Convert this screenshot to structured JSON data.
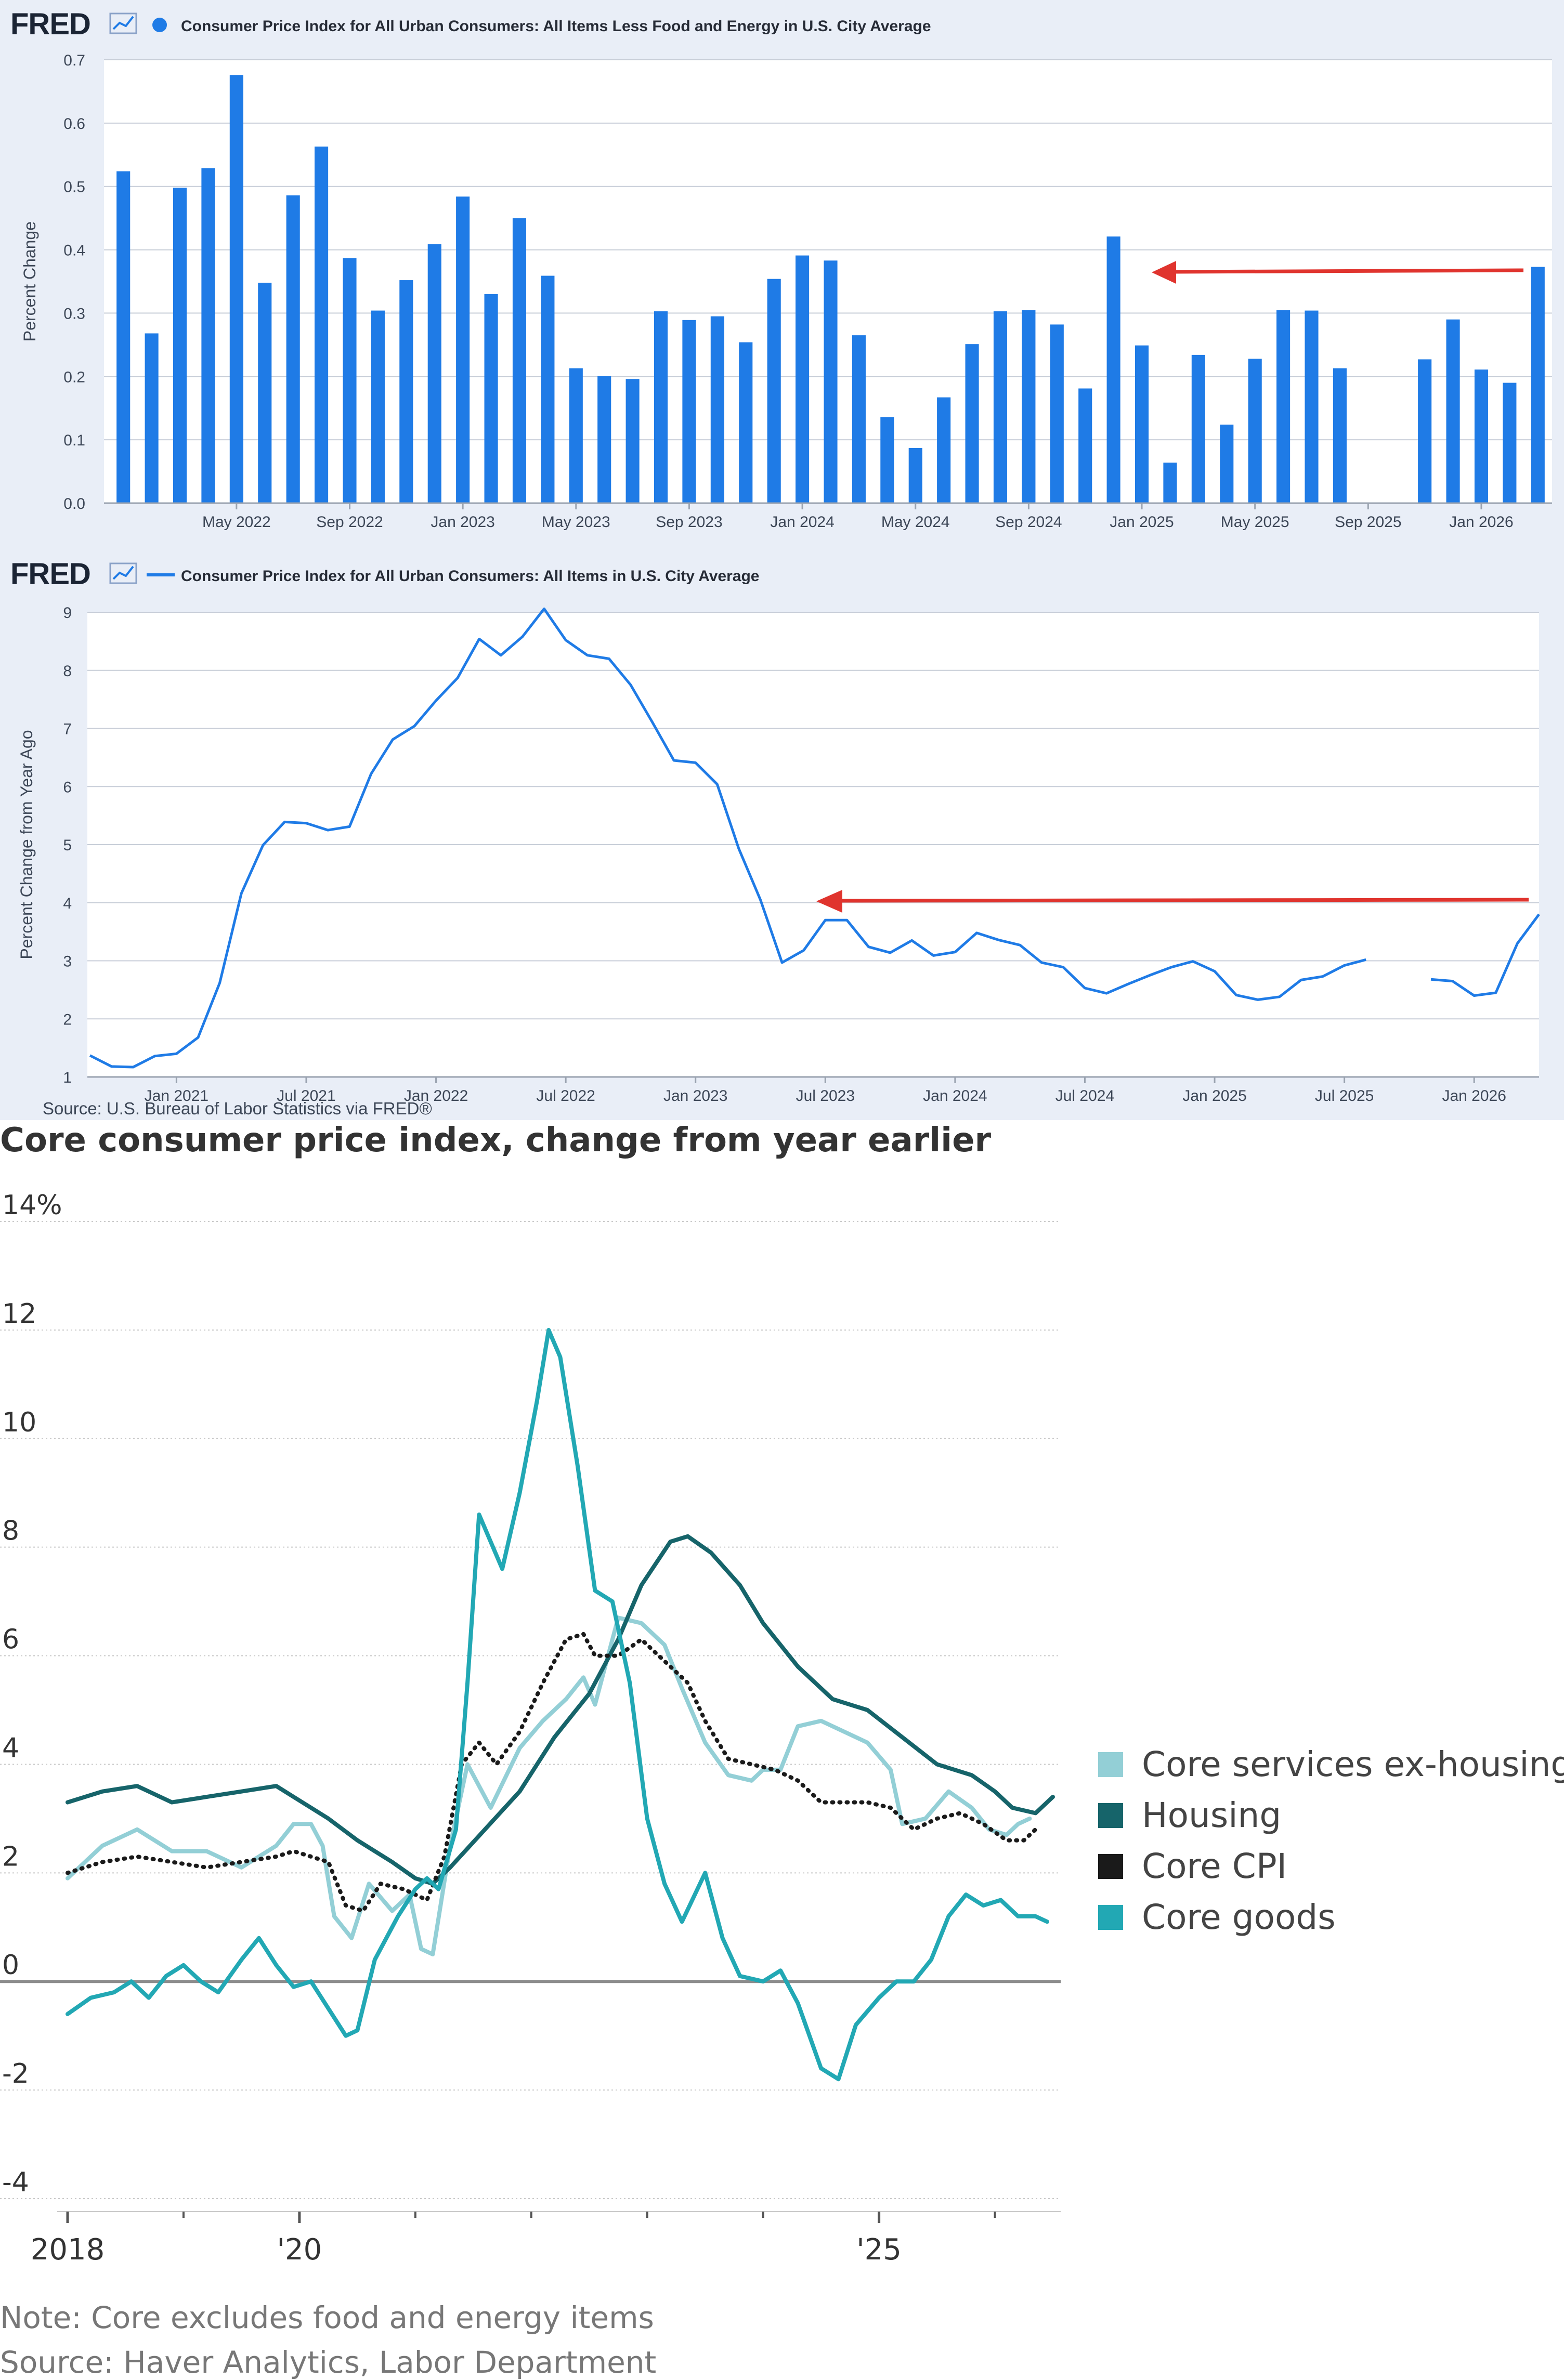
{
  "chart_data": [
    {
      "type": "bar",
      "brand": "FRED",
      "title": "Consumer Price Index for All Urban Consumers: All Items Less Food and Energy in U.S. City Average",
      "ylabel": "Percent Change",
      "ylim": [
        0,
        0.7
      ],
      "yticks": [
        "0.0",
        "0.1",
        "0.2",
        "0.3",
        "0.4",
        "0.5",
        "0.6",
        "0.7"
      ],
      "xtick_labels": [
        "May 2022",
        "Sep 2022",
        "Jan 2023",
        "May 2023",
        "Sep 2023",
        "Jan 2024",
        "May 2024",
        "Sep 2024",
        "Jan 2025",
        "May 2025",
        "Sep 2025",
        "Jan 2026"
      ],
      "categories": [
        "Jan 2022",
        "Feb 2022",
        "Mar 2022",
        "Apr 2022",
        "May 2022",
        "Jun 2022",
        "Jul 2022",
        "Aug 2022",
        "Sep 2022",
        "Oct 2022",
        "Nov 2022",
        "Dec 2022",
        "Jan 2023",
        "Feb 2023",
        "Mar 2023",
        "Apr 2023",
        "May 2023",
        "Jun 2023",
        "Jul 2023",
        "Aug 2023",
        "Sep 2023",
        "Oct 2023",
        "Nov 2023",
        "Dec 2023",
        "Jan 2024",
        "Feb 2024",
        "Mar 2024",
        "Apr 2024",
        "May 2024",
        "Jun 2024",
        "Jul 2024",
        "Aug 2024",
        "Sep 2024",
        "Oct 2024",
        "Nov 2024",
        "Dec 2024",
        "Jan 2025",
        "Feb 2025",
        "Mar 2025",
        "Apr 2025",
        "May 2025",
        "Jun 2025",
        "Jul 2025",
        "Aug 2025",
        "Sep 2025",
        "Oct 2025",
        "Nov 2025",
        "Dec 2025",
        "Jan 2026",
        "Feb 2026",
        "Mar 2026"
      ],
      "values": [
        0.524,
        0.268,
        0.498,
        0.529,
        0.676,
        0.348,
        0.486,
        0.563,
        0.387,
        0.304,
        0.352,
        0.409,
        0.484,
        0.33,
        0.45,
        0.359,
        0.213,
        0.201,
        0.196,
        0.303,
        0.289,
        0.295,
        0.254,
        0.354,
        0.391,
        0.383,
        0.265,
        0.136,
        0.087,
        0.167,
        0.251,
        0.303,
        0.305,
        0.282,
        0.181,
        0.421,
        0.249,
        0.064,
        0.234,
        0.124,
        0.228,
        0.305,
        0.304,
        0.213,
        null,
        null,
        0.227,
        0.29,
        0.211,
        0.19,
        0.373
      ],
      "colors": {
        "bar": "#1f7be6",
        "arrow": "#e0342e",
        "panel": "#e9eef7",
        "grid": "#c8ced8"
      }
    },
    {
      "type": "line",
      "brand": "FRED",
      "title": "Consumer Price Index for All Urban Consumers: All Items in U.S. City Average",
      "ylabel": "Percent Change from Year Ago",
      "ylim": [
        1,
        9
      ],
      "yticks": [
        "1",
        "2",
        "3",
        "4",
        "5",
        "6",
        "7",
        "8",
        "9"
      ],
      "xtick_labels": [
        "Jan 2021",
        "Jul 2021",
        "Jan 2022",
        "Jul 2022",
        "Jan 2023",
        "Jul 2023",
        "Jan 2024",
        "Jul 2024",
        "Jan 2025",
        "Jul 2025",
        "Jan 2026"
      ],
      "source": "Source: U.S. Bureau of Labor Statistics via FRED®",
      "series": [
        {
          "name": "Consumer Price Index for All Urban Consumers: All Items in U.S. City Average",
          "start": "Sep 2020",
          "values": [
            1.37,
            1.18,
            1.17,
            1.36,
            1.4,
            1.68,
            2.62,
            4.16,
            4.99,
            5.39,
            5.37,
            5.25,
            5.31,
            6.22,
            6.81,
            7.04,
            7.48,
            7.87,
            8.54,
            8.26,
            8.58,
            9.06,
            8.52,
            8.26,
            8.2,
            7.75,
            7.11,
            6.45,
            6.41,
            6.04,
            4.93,
            4.05,
            2.97,
            3.18,
            3.7,
            3.7,
            3.24,
            3.14,
            3.35,
            3.09,
            3.15,
            3.48,
            3.36,
            3.27,
            2.97,
            2.89,
            2.53,
            2.44,
            2.6,
            2.75,
            2.89,
            2.99,
            2.82,
            2.41,
            2.33,
            2.38,
            2.67,
            2.73,
            2.92,
            3.02,
            null,
            null,
            2.68,
            2.65,
            2.4,
            2.45,
            3.3,
            3.8
          ]
        }
      ],
      "colors": {
        "line": "#1f7be6",
        "arrow": "#e0342e",
        "panel": "#e9eef7",
        "grid": "#c8ced8"
      }
    },
    {
      "type": "line",
      "title": "Core consumer price index, change from year earlier",
      "ylim": [
        -4,
        14
      ],
      "yticks": [
        "14%",
        "12",
        "10",
        "8",
        "6",
        "4",
        "2",
        "0",
        "-2",
        "-4"
      ],
      "xtick_labels": [
        "2018",
        "'20",
        "'25"
      ],
      "note": "Note: Core excludes food and energy items",
      "source": "Source: Haver Analytics, Labor Department",
      "legend": [
        "Core services ex-housing",
        "Housing",
        "Core CPI",
        "Core goods"
      ],
      "legend_placement": "right",
      "series": [
        {
          "name": "Core services ex-housing",
          "color": "#93cfd6",
          "points": [
            [
              2018.0,
              1.9
            ],
            [
              2018.3,
              2.5
            ],
            [
              2018.6,
              2.8
            ],
            [
              2018.9,
              2.4
            ],
            [
              2019.2,
              2.4
            ],
            [
              2019.5,
              2.1
            ],
            [
              2019.8,
              2.5
            ],
            [
              2019.95,
              2.9
            ],
            [
              2020.1,
              2.9
            ],
            [
              2020.2,
              2.5
            ],
            [
              2020.3,
              1.2
            ],
            [
              2020.45,
              0.8
            ],
            [
              2020.6,
              1.8
            ],
            [
              2020.8,
              1.3
            ],
            [
              2020.95,
              1.6
            ],
            [
              2021.05,
              0.6
            ],
            [
              2021.15,
              0.5
            ],
            [
              2021.3,
              2.5
            ],
            [
              2021.45,
              4.0
            ],
            [
              2021.65,
              3.2
            ],
            [
              2021.9,
              4.3
            ],
            [
              2022.1,
              4.8
            ],
            [
              2022.3,
              5.2
            ],
            [
              2022.45,
              5.6
            ],
            [
              2022.55,
              5.1
            ],
            [
              2022.75,
              6.7
            ],
            [
              2022.95,
              6.6
            ],
            [
              2023.15,
              6.2
            ],
            [
              2023.3,
              5.4
            ],
            [
              2023.5,
              4.4
            ],
            [
              2023.7,
              3.8
            ],
            [
              2023.9,
              3.7
            ],
            [
              2024.0,
              3.9
            ],
            [
              2024.15,
              3.9
            ],
            [
              2024.3,
              4.7
            ],
            [
              2024.5,
              4.8
            ],
            [
              2024.7,
              4.6
            ],
            [
              2024.9,
              4.4
            ],
            [
              2025.1,
              3.9
            ],
            [
              2025.2,
              2.9
            ],
            [
              2025.4,
              3.0
            ],
            [
              2025.6,
              3.5
            ],
            [
              2025.8,
              3.2
            ],
            [
              2025.95,
              2.8
            ],
            [
              2026.1,
              2.7
            ],
            [
              2026.2,
              2.9
            ],
            [
              2026.3,
              3.0
            ]
          ]
        },
        {
          "name": "Housing",
          "color": "#16646a",
          "points": [
            [
              2018.0,
              3.3
            ],
            [
              2018.3,
              3.5
            ],
            [
              2018.6,
              3.6
            ],
            [
              2018.9,
              3.3
            ],
            [
              2019.2,
              3.4
            ],
            [
              2019.5,
              3.5
            ],
            [
              2019.8,
              3.6
            ],
            [
              2019.95,
              3.4
            ],
            [
              2020.1,
              3.2
            ],
            [
              2020.25,
              3.0
            ],
            [
              2020.5,
              2.6
            ],
            [
              2020.8,
              2.2
            ],
            [
              2021.0,
              1.9
            ],
            [
              2021.15,
              1.8
            ],
            [
              2021.3,
              2.1
            ],
            [
              2021.6,
              2.8
            ],
            [
              2021.9,
              3.5
            ],
            [
              2022.2,
              4.5
            ],
            [
              2022.5,
              5.3
            ],
            [
              2022.75,
              6.3
            ],
            [
              2022.95,
              7.3
            ],
            [
              2023.2,
              8.1
            ],
            [
              2023.35,
              8.2
            ],
            [
              2023.55,
              7.9
            ],
            [
              2023.8,
              7.3
            ],
            [
              2024.0,
              6.6
            ],
            [
              2024.3,
              5.8
            ],
            [
              2024.6,
              5.2
            ],
            [
              2024.9,
              5.0
            ],
            [
              2025.2,
              4.5
            ],
            [
              2025.5,
              4.0
            ],
            [
              2025.8,
              3.8
            ],
            [
              2026.0,
              3.5
            ],
            [
              2026.15,
              3.2
            ],
            [
              2026.35,
              3.1
            ],
            [
              2026.5,
              3.4
            ]
          ]
        },
        {
          "name": "Core CPI",
          "color": "#1a1a1a",
          "points": [
            [
              2018.0,
              2.0
            ],
            [
              2018.3,
              2.2
            ],
            [
              2018.6,
              2.3
            ],
            [
              2018.9,
              2.2
            ],
            [
              2019.2,
              2.1
            ],
            [
              2019.5,
              2.2
            ],
            [
              2019.8,
              2.3
            ],
            [
              2019.95,
              2.4
            ],
            [
              2020.1,
              2.3
            ],
            [
              2020.25,
              2.2
            ],
            [
              2020.4,
              1.4
            ],
            [
              2020.55,
              1.3
            ],
            [
              2020.7,
              1.8
            ],
            [
              2020.9,
              1.7
            ],
            [
              2021.1,
              1.5
            ],
            [
              2021.25,
              2.3
            ],
            [
              2021.4,
              4.0
            ],
            [
              2021.55,
              4.4
            ],
            [
              2021.7,
              4.0
            ],
            [
              2021.9,
              4.6
            ],
            [
              2022.1,
              5.5
            ],
            [
              2022.3,
              6.3
            ],
            [
              2022.45,
              6.4
            ],
            [
              2022.55,
              6.0
            ],
            [
              2022.75,
              6.0
            ],
            [
              2022.95,
              6.3
            ],
            [
              2023.15,
              5.9
            ],
            [
              2023.35,
              5.5
            ],
            [
              2023.5,
              4.8
            ],
            [
              2023.7,
              4.1
            ],
            [
              2023.9,
              4.0
            ],
            [
              2024.1,
              3.9
            ],
            [
              2024.3,
              3.7
            ],
            [
              2024.5,
              3.3
            ],
            [
              2024.7,
              3.3
            ],
            [
              2024.9,
              3.3
            ],
            [
              2025.1,
              3.2
            ],
            [
              2025.3,
              2.8
            ],
            [
              2025.5,
              3.0
            ],
            [
              2025.7,
              3.1
            ],
            [
              2025.9,
              2.9
            ],
            [
              2026.1,
              2.6
            ],
            [
              2026.25,
              2.6
            ],
            [
              2026.35,
              2.8
            ]
          ]
        },
        {
          "name": "Core goods",
          "color": "#22a8b4",
          "points": [
            [
              2018.0,
              -0.6
            ],
            [
              2018.2,
              -0.3
            ],
            [
              2018.4,
              -0.2
            ],
            [
              2018.55,
              0.0
            ],
            [
              2018.7,
              -0.3
            ],
            [
              2018.85,
              0.1
            ],
            [
              2019.0,
              0.3
            ],
            [
              2019.15,
              0.0
            ],
            [
              2019.3,
              -0.2
            ],
            [
              2019.5,
              0.4
            ],
            [
              2019.65,
              0.8
            ],
            [
              2019.8,
              0.3
            ],
            [
              2019.95,
              -0.1
            ],
            [
              2020.1,
              0.0
            ],
            [
              2020.25,
              -0.5
            ],
            [
              2020.4,
              -1.0
            ],
            [
              2020.5,
              -0.9
            ],
            [
              2020.65,
              0.4
            ],
            [
              2020.85,
              1.2
            ],
            [
              2021.0,
              1.7
            ],
            [
              2021.1,
              1.9
            ],
            [
              2021.2,
              1.7
            ],
            [
              2021.35,
              2.8
            ],
            [
              2021.45,
              5.5
            ],
            [
              2021.55,
              8.6
            ],
            [
              2021.75,
              7.6
            ],
            [
              2021.9,
              9.0
            ],
            [
              2022.05,
              10.7
            ],
            [
              2022.15,
              12.0
            ],
            [
              2022.25,
              11.5
            ],
            [
              2022.4,
              9.5
            ],
            [
              2022.55,
              7.2
            ],
            [
              2022.7,
              7.0
            ],
            [
              2022.85,
              5.5
            ],
            [
              2023.0,
              3.0
            ],
            [
              2023.15,
              1.8
            ],
            [
              2023.3,
              1.1
            ],
            [
              2023.5,
              2.0
            ],
            [
              2023.65,
              0.8
            ],
            [
              2023.8,
              0.1
            ],
            [
              2024.0,
              0.0
            ],
            [
              2024.15,
              0.2
            ],
            [
              2024.3,
              -0.4
            ],
            [
              2024.5,
              -1.6
            ],
            [
              2024.65,
              -1.8
            ],
            [
              2024.8,
              -0.8
            ],
            [
              2025.0,
              -0.3
            ],
            [
              2025.15,
              0.0
            ],
            [
              2025.3,
              0.0
            ],
            [
              2025.45,
              0.4
            ],
            [
              2025.6,
              1.2
            ],
            [
              2025.75,
              1.6
            ],
            [
              2025.9,
              1.4
            ],
            [
              2026.05,
              1.5
            ],
            [
              2026.2,
              1.2
            ],
            [
              2026.35,
              1.2
            ],
            [
              2026.45,
              1.1
            ]
          ]
        }
      ]
    }
  ]
}
